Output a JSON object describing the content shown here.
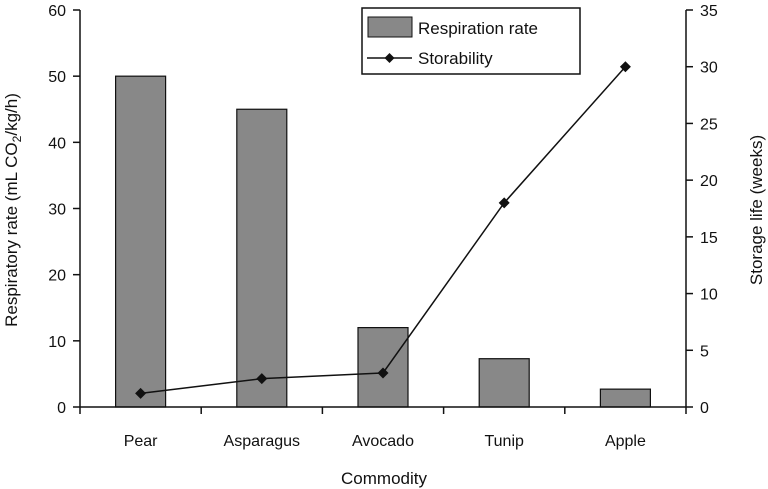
{
  "chart_data": {
    "type": "bar",
    "xlabel": "Commodity",
    "ylabel": "Respiratory rate (mL CO",
    "ylabel_sub": "2",
    "ylabel_suffix": "/kg/h)",
    "y2label": "Storage life (weeks)",
    "categories": [
      "Pear",
      "Asparagus",
      "Avocado",
      "Tunip",
      "Apple"
    ],
    "ylim": [
      0,
      60
    ],
    "y_ticks": [
      0,
      10,
      20,
      30,
      40,
      50,
      60
    ],
    "y2lim": [
      0,
      35
    ],
    "y2_ticks": [
      0,
      5,
      10,
      15,
      20,
      25,
      30,
      35
    ],
    "series": [
      {
        "name": "Respiration rate",
        "type": "bar",
        "axis": "left",
        "values": [
          50,
          45,
          12,
          7.3,
          2.7
        ],
        "color": "#888888"
      },
      {
        "name": "Storability",
        "type": "line",
        "axis": "right",
        "values": [
          1.2,
          2.5,
          3,
          18,
          30
        ],
        "color": "#111111",
        "marker": "diamond"
      }
    ],
    "legend_position": "top-right",
    "grid": false
  }
}
